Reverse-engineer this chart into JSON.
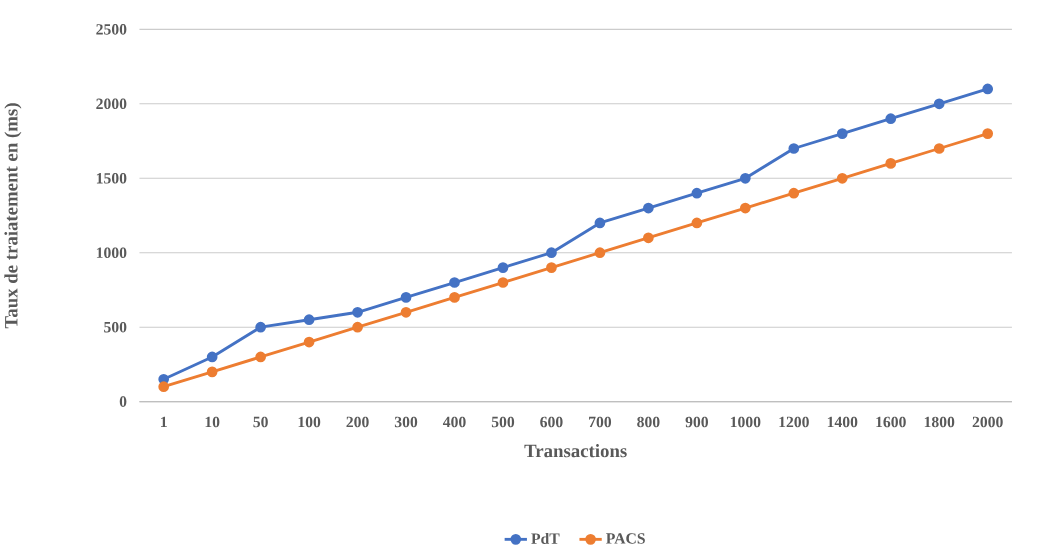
{
  "chart_data": {
    "type": "line",
    "xlabel": "Transactions",
    "ylabel": "Taux de traiatement en (ms)",
    "categories": [
      "1",
      "10",
      "50",
      "100",
      "200",
      "300",
      "400",
      "500",
      "600",
      "700",
      "800",
      "900",
      "1000",
      "1200",
      "1400",
      "1600",
      "1800",
      "2000"
    ],
    "series": [
      {
        "name": "PdT",
        "color": "#4472c4",
        "values": [
          150,
          300,
          500,
          550,
          600,
          700,
          800,
          900,
          1000,
          1200,
          1300,
          1400,
          1500,
          1700,
          1800,
          1900,
          2000,
          2100
        ]
      },
      {
        "name": "PACS",
        "color": "#ed7d31",
        "values": [
          100,
          200,
          300,
          400,
          500,
          600,
          700,
          800,
          900,
          1000,
          1100,
          1200,
          1300,
          1400,
          1500,
          1600,
          1700,
          1800
        ]
      }
    ],
    "ylim": [
      0,
      2500
    ],
    "yticks": [
      0,
      500,
      1000,
      1500,
      2000,
      2500
    ],
    "grid": "y",
    "legend": "bottom",
    "marker": "circle",
    "line_style": "solid"
  }
}
